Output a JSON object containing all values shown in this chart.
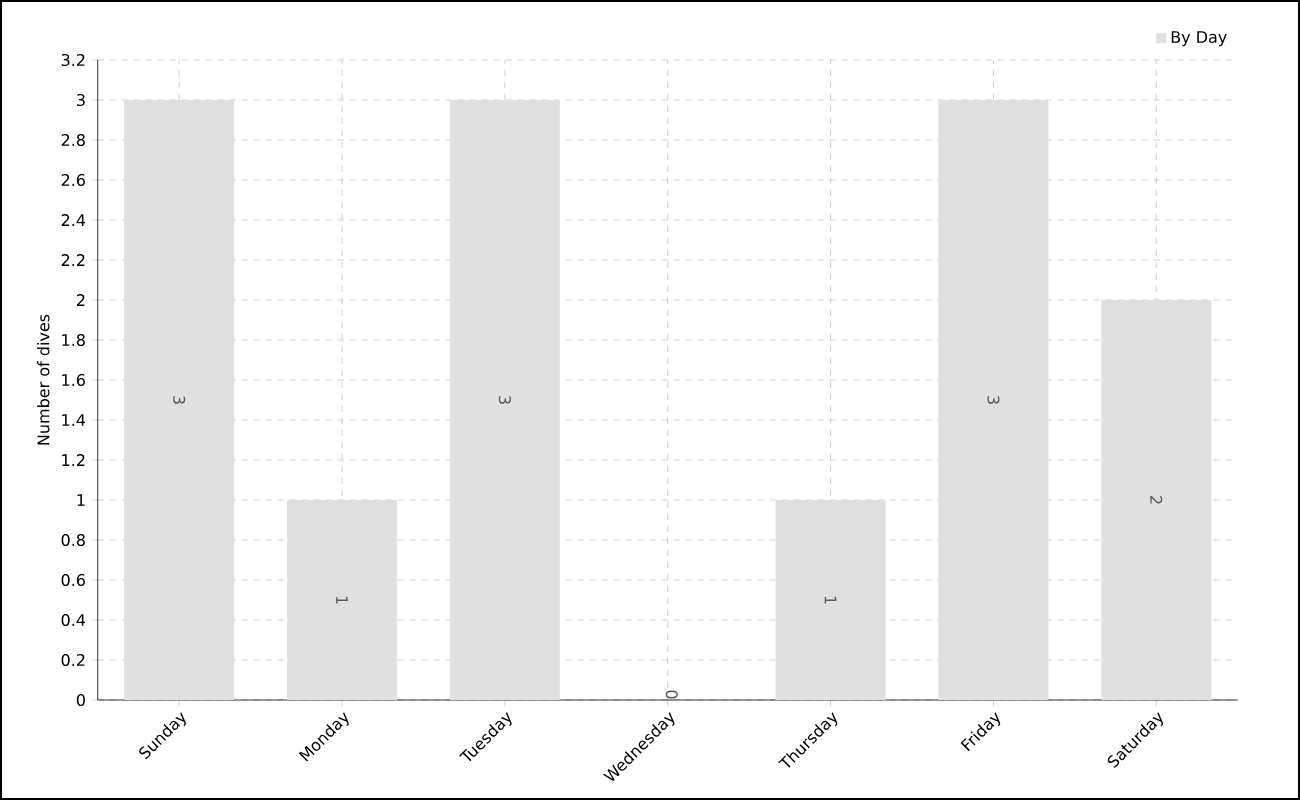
{
  "chart_data": {
    "type": "bar",
    "ylabel": "Number of dives",
    "categories": [
      "Sunday",
      "Monday",
      "Tuesday",
      "Wednesday",
      "Thursday",
      "Friday",
      "Saturday"
    ],
    "series": [
      {
        "name": "By Day",
        "color": "#e0e0e0",
        "values": [
          3,
          1,
          3,
          0,
          1,
          3,
          2
        ]
      }
    ],
    "ylim": [
      0,
      3.2
    ],
    "yticks": [
      0,
      0.2,
      0.4,
      0.6,
      0.8,
      1,
      1.2,
      1.4,
      1.6,
      1.8,
      2,
      2.2,
      2.4,
      2.6,
      2.8,
      3,
      3.2
    ],
    "grid": true,
    "legend": "top right",
    "data_labels": true
  }
}
